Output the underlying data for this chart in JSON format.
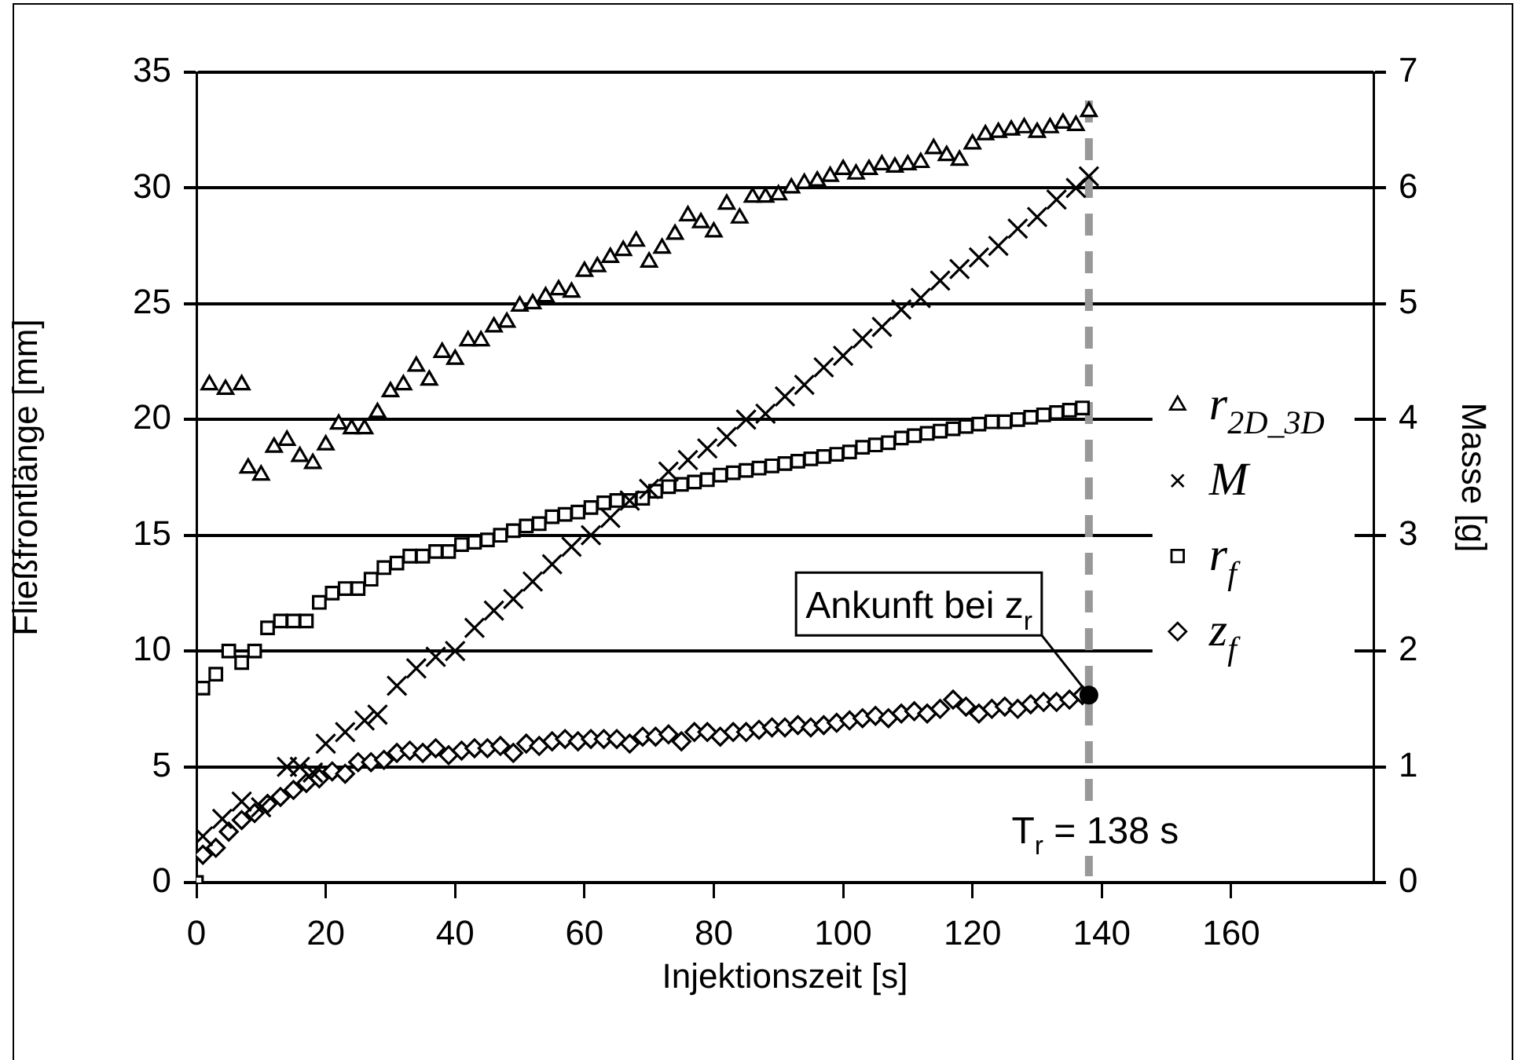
{
  "chart_data": {
    "type": "scatter",
    "xlabel": "Injektionszeit [s]",
    "ylabel": "Fließfrontlänge [mm]",
    "y2label": "Masse [g]",
    "xlim": [
      0,
      182
    ],
    "xticks": [
      0,
      20,
      40,
      60,
      80,
      100,
      120,
      140,
      160
    ],
    "ylim": [
      0,
      35
    ],
    "yticks": [
      0,
      5,
      10,
      15,
      20,
      25,
      30,
      35
    ],
    "y2lim": [
      0,
      7
    ],
    "y2ticks": [
      0,
      1,
      2,
      3,
      4,
      5,
      6,
      7
    ],
    "grid": "y",
    "legend": "right",
    "series": [
      {
        "name": "r$_{2D_3D}$",
        "color": "#000000",
        "marker": "triangle",
        "x": [
          2,
          4.5,
          7,
          8,
          10,
          12,
          14,
          16,
          18,
          20,
          22,
          24,
          26,
          28,
          30,
          32,
          34,
          36,
          38,
          40,
          42,
          44,
          46,
          48,
          50,
          52,
          54,
          56,
          58,
          60,
          62,
          64,
          66,
          68,
          70,
          72,
          74,
          76,
          78,
          80,
          82,
          84,
          86,
          88,
          90,
          92,
          94,
          96,
          98,
          100,
          102,
          104,
          106,
          108,
          110,
          112,
          114,
          116,
          118,
          120,
          122,
          124,
          126,
          128,
          130,
          132,
          134,
          136,
          138
        ],
        "values": [
          21.5,
          21.3,
          21.5,
          17.9,
          17.6,
          18.8,
          19.1,
          18.4,
          18.1,
          18.9,
          19.8,
          19.6,
          19.6,
          20.3,
          21.2,
          21.5,
          22.3,
          21.7,
          22.9,
          22.6,
          23.4,
          23.4,
          24.0,
          24.2,
          24.9,
          25.0,
          25.3,
          25.6,
          25.5,
          26.4,
          26.6,
          27.0,
          27.3,
          27.7,
          26.8,
          27.4,
          28.0,
          28.8,
          28.5,
          28.1,
          29.3,
          28.7,
          29.6,
          29.6,
          29.7,
          30.0,
          30.2,
          30.3,
          30.5,
          30.8,
          30.6,
          30.8,
          31.0,
          30.9,
          31.0,
          31.1,
          31.7,
          31.4,
          31.2,
          31.9,
          32.3,
          32.4,
          32.5,
          32.6,
          32.4,
          32.6,
          32.8,
          32.7,
          33.3
        ]
      },
      {
        "name": "M",
        "color": "#000000",
        "marker": "cross",
        "axis": "y2",
        "x": [
          1,
          4,
          7,
          10,
          14,
          16,
          18,
          20,
          23,
          26,
          28,
          31,
          34,
          37,
          40,
          43,
          46,
          49,
          52,
          55,
          58,
          61,
          64,
          67,
          70,
          73,
          76,
          79,
          82,
          85,
          88,
          91,
          94,
          97,
          100,
          103,
          106,
          109,
          112,
          115,
          118,
          121,
          124,
          127,
          130,
          133,
          136,
          138
        ],
        "values": [
          0.4,
          0.55,
          0.7,
          0.65,
          1.0,
          1.0,
          0.95,
          1.2,
          1.3,
          1.4,
          1.45,
          1.7,
          1.85,
          1.95,
          2.0,
          2.2,
          2.35,
          2.45,
          2.6,
          2.75,
          2.9,
          3.0,
          3.15,
          3.3,
          3.4,
          3.55,
          3.65,
          3.75,
          3.85,
          4.0,
          4.05,
          4.2,
          4.3,
          4.45,
          4.55,
          4.7,
          4.8,
          4.95,
          5.05,
          5.2,
          5.3,
          5.4,
          5.5,
          5.65,
          5.75,
          5.9,
          6.0,
          6.1
        ]
      },
      {
        "name": "r$_{f}$",
        "color": "#000000",
        "marker": "square",
        "x": [
          0,
          1,
          3,
          5,
          7,
          9,
          11,
          13,
          15,
          17,
          19,
          21,
          23,
          25,
          27,
          29,
          31,
          33,
          35,
          37,
          39,
          41,
          43,
          45,
          47,
          49,
          51,
          53,
          55,
          57,
          59,
          61,
          63,
          65,
          67,
          69,
          71,
          73,
          75,
          77,
          79,
          81,
          83,
          85,
          87,
          89,
          91,
          93,
          95,
          97,
          99,
          101,
          103,
          105,
          107,
          109,
          111,
          113,
          115,
          117,
          119,
          121,
          123,
          125,
          127,
          129,
          131,
          133,
          135,
          137
        ],
        "values": [
          0,
          8.4,
          9.0,
          10.0,
          9.5,
          10.0,
          11.0,
          11.3,
          11.3,
          11.3,
          12.1,
          12.5,
          12.7,
          12.7,
          13.1,
          13.6,
          13.8,
          14.1,
          14.1,
          14.3,
          14.3,
          14.6,
          14.7,
          14.8,
          15.0,
          15.2,
          15.4,
          15.5,
          15.8,
          15.9,
          16.0,
          16.2,
          16.4,
          16.5,
          16.5,
          16.6,
          16.9,
          17.1,
          17.2,
          17.3,
          17.4,
          17.6,
          17.7,
          17.8,
          17.9,
          18.0,
          18.1,
          18.2,
          18.3,
          18.4,
          18.5,
          18.6,
          18.8,
          18.9,
          19.0,
          19.2,
          19.3,
          19.4,
          19.5,
          19.6,
          19.7,
          19.8,
          19.9,
          19.9,
          20.0,
          20.1,
          20.2,
          20.3,
          20.4,
          20.5
        ]
      },
      {
        "name": "z$_{f}$",
        "color": "#000000",
        "marker": "diamond",
        "x": [
          1,
          3,
          5,
          7,
          9,
          11,
          13,
          15,
          17,
          19,
          21,
          23,
          25,
          27,
          29,
          31,
          33,
          35,
          37,
          39,
          41,
          43,
          45,
          47,
          49,
          51,
          53,
          55,
          57,
          59,
          61,
          63,
          65,
          67,
          69,
          71,
          73,
          75,
          77,
          79,
          81,
          83,
          85,
          87,
          89,
          91,
          93,
          95,
          97,
          99,
          101,
          103,
          105,
          107,
          109,
          111,
          113,
          115,
          117,
          119,
          121,
          123,
          125,
          127,
          129,
          131,
          133,
          135,
          137
        ],
        "values": [
          1.2,
          1.5,
          2.2,
          2.7,
          3.0,
          3.4,
          3.7,
          4.0,
          4.3,
          4.5,
          4.8,
          4.7,
          5.2,
          5.2,
          5.3,
          5.6,
          5.7,
          5.6,
          5.8,
          5.5,
          5.7,
          5.8,
          5.8,
          5.9,
          5.6,
          6.0,
          5.9,
          6.1,
          6.2,
          6.1,
          6.2,
          6.2,
          6.2,
          6.0,
          6.3,
          6.3,
          6.4,
          6.1,
          6.5,
          6.5,
          6.3,
          6.5,
          6.5,
          6.6,
          6.7,
          6.7,
          6.8,
          6.7,
          6.8,
          6.9,
          7.0,
          7.1,
          7.2,
          7.1,
          7.3,
          7.4,
          7.3,
          7.5,
          7.9,
          7.6,
          7.3,
          7.5,
          7.6,
          7.5,
          7.7,
          7.8,
          7.8,
          7.9,
          8.1
        ]
      }
    ],
    "ref_lines": [
      {
        "axis": "x",
        "value": 138,
        "label": "T$_{r}$ = 138 s",
        "color": "#999999",
        "line_style": "dashed"
      }
    ],
    "annotations": [
      {
        "text": "Ankunft bei z$_{r}$",
        "x": 138,
        "y": 8.1
      }
    ]
  }
}
